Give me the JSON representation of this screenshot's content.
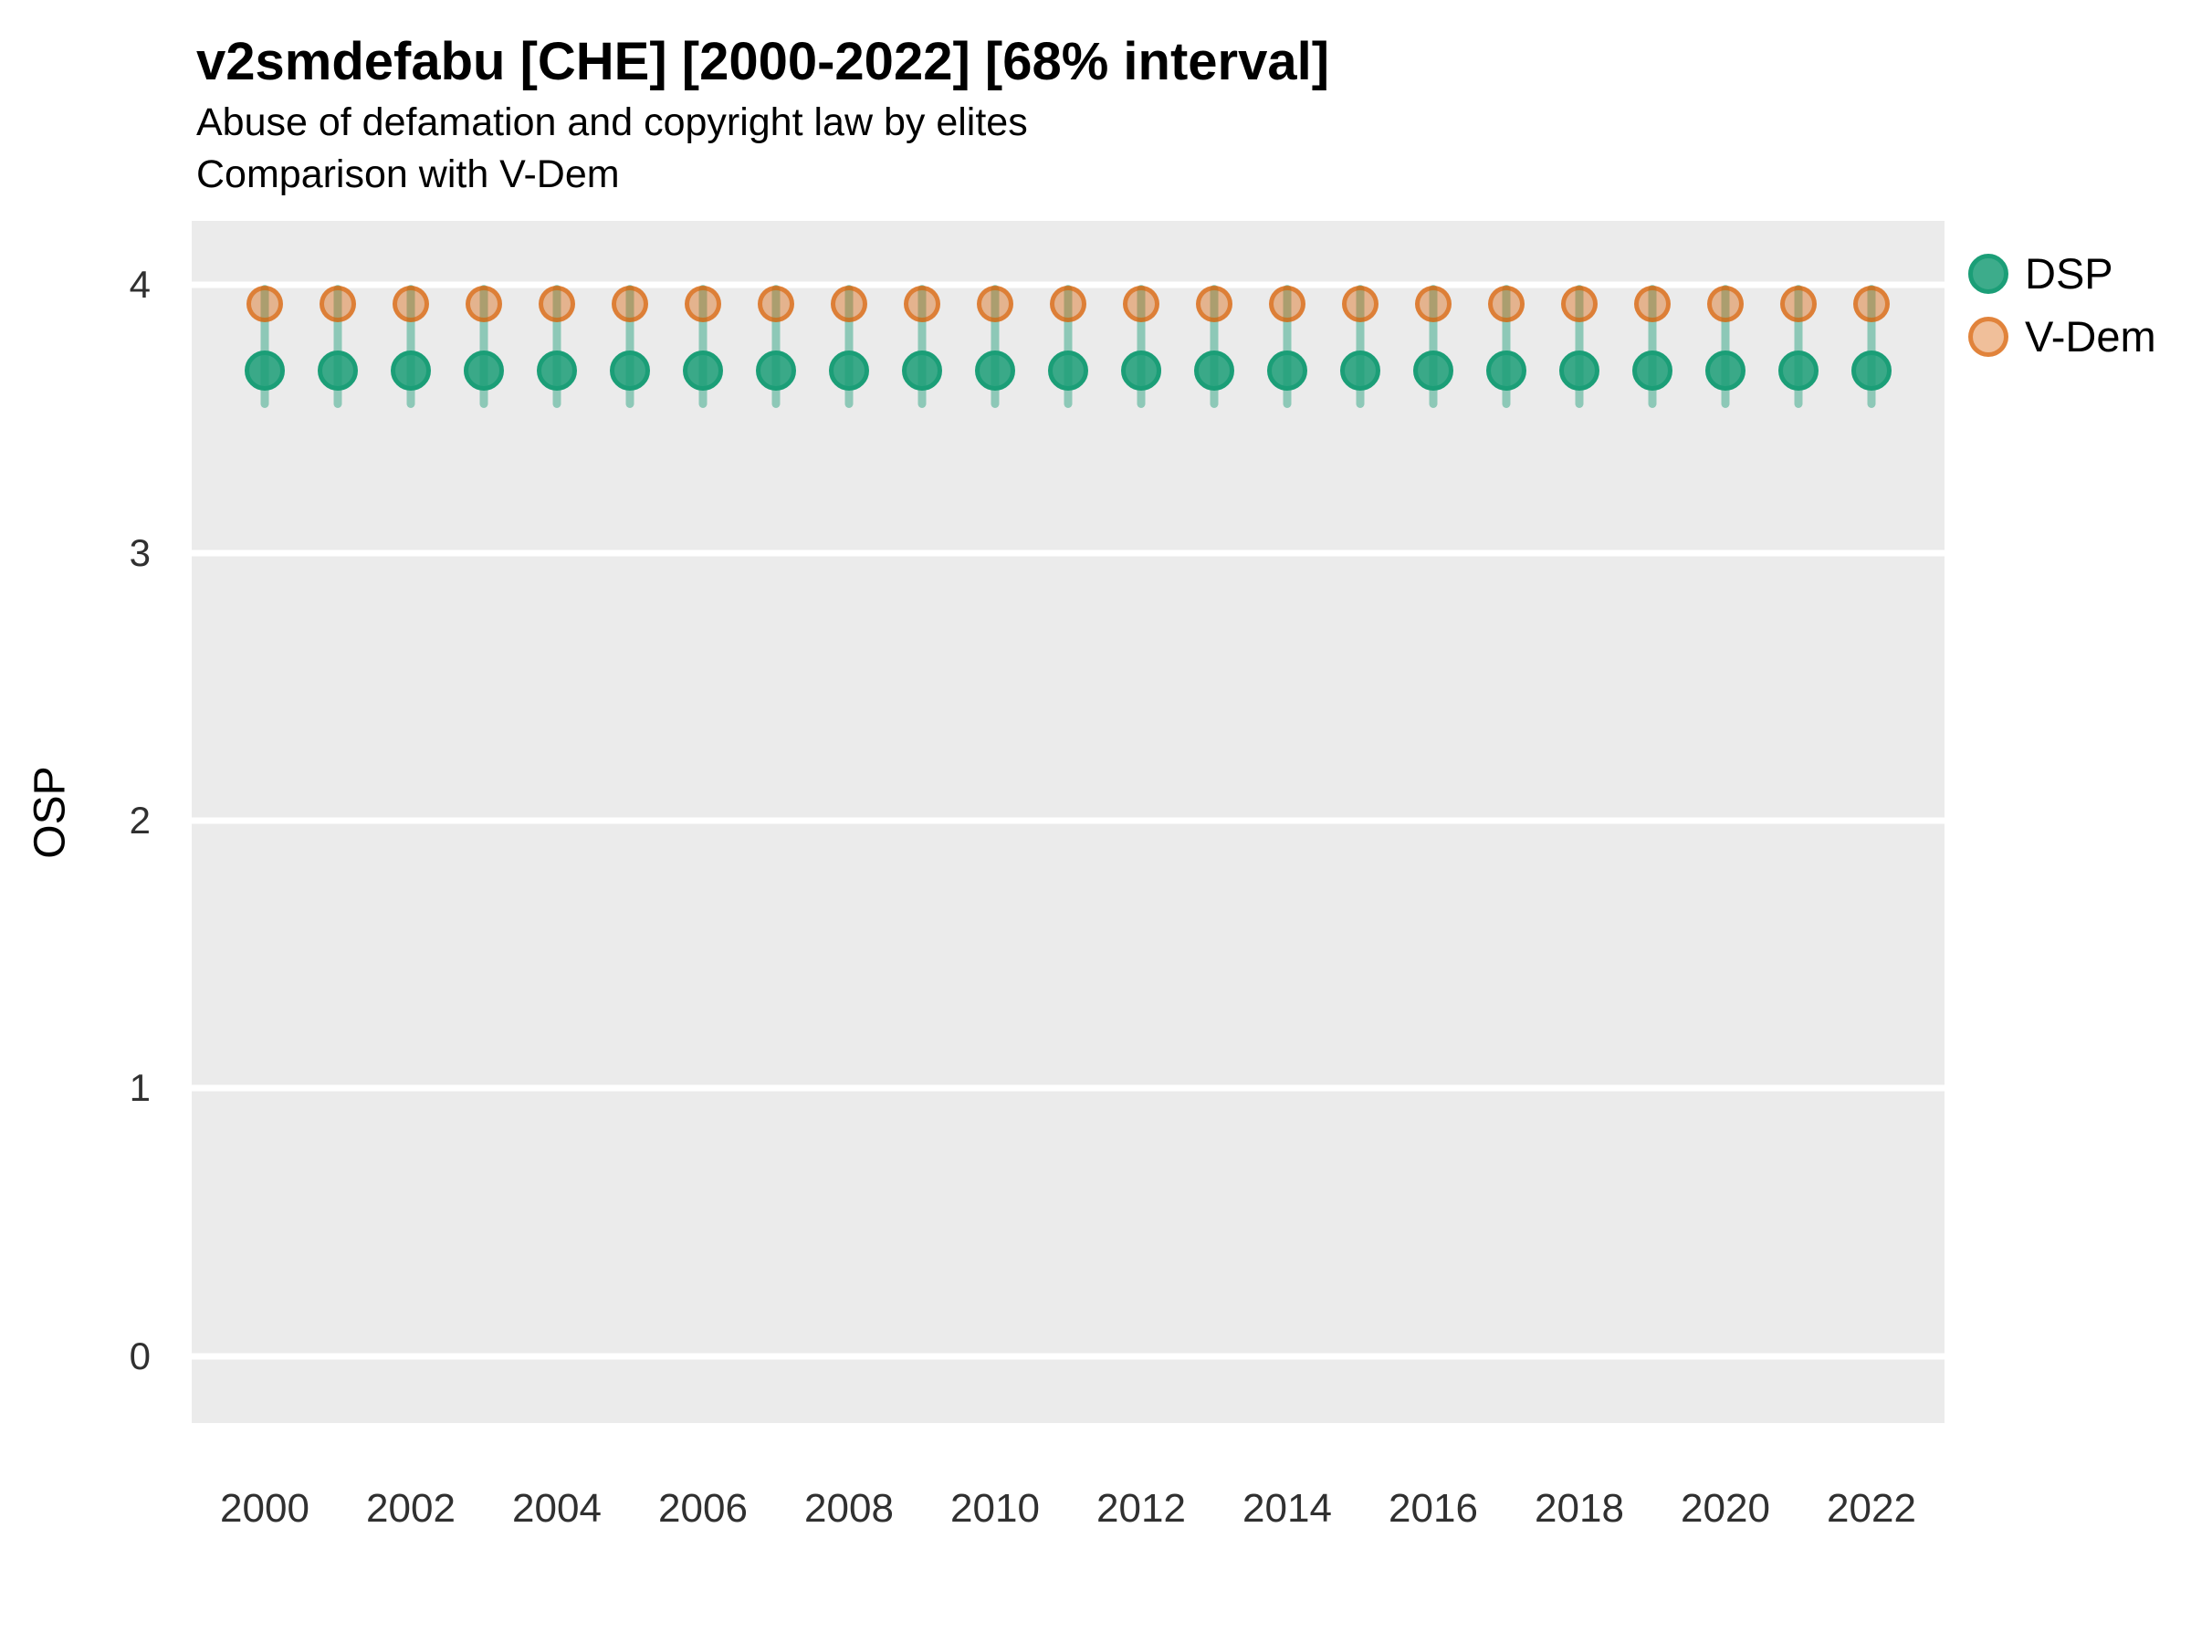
{
  "header": {
    "title": "v2smdefabu [CHE] [2000-2022] [68% interval]",
    "subtitle_line1": "Abuse of defamation and copyright law by elites",
    "subtitle_line2": "Comparison with V-Dem"
  },
  "y_axis_title": "OSP",
  "legend": {
    "position": "right",
    "entries": [
      {
        "label": "DSP",
        "color": "#1B9E77"
      },
      {
        "label": "V-Dem",
        "color": "#D95F02"
      }
    ]
  },
  "colors": {
    "dsp_base": "#1B9E77",
    "vdem_base": "#D95F02",
    "dsp_point_fill": "rgba(27,158,119,0.85)",
    "dsp_point_stroke": "#1B9E77",
    "vdem_point_fill": "rgba(217,95,2,0.40)",
    "vdem_point_stroke": "rgba(217,95,2,0.62)",
    "interval_line": "rgba(27,158,119,0.45)",
    "panel_background": "#EBEBEB",
    "gridline": "#FFFFFF",
    "tick_text": "#303030"
  },
  "chart_data": {
    "type": "scatter",
    "subtype": "pointrange",
    "title": "v2smdefabu [CHE] [2000-2022] [68% interval]",
    "subtitle": [
      "Abuse of defamation and copyright law by elites",
      "Comparison with V-Dem"
    ],
    "xlabel": "",
    "ylabel": "OSP",
    "x": [
      2000,
      2001,
      2002,
      2003,
      2004,
      2005,
      2006,
      2007,
      2008,
      2009,
      2010,
      2011,
      2012,
      2013,
      2014,
      2015,
      2016,
      2017,
      2018,
      2019,
      2020,
      2021,
      2022
    ],
    "series": [
      {
        "name": "DSP",
        "values": [
          3.68,
          3.68,
          3.68,
          3.68,
          3.68,
          3.68,
          3.68,
          3.68,
          3.68,
          3.68,
          3.68,
          3.68,
          3.68,
          3.68,
          3.68,
          3.68,
          3.68,
          3.68,
          3.68,
          3.68,
          3.68,
          3.68,
          3.68
        ],
        "lower": [
          3.54,
          3.54,
          3.54,
          3.54,
          3.54,
          3.54,
          3.54,
          3.54,
          3.54,
          3.54,
          3.54,
          3.54,
          3.54,
          3.54,
          3.54,
          3.54,
          3.54,
          3.54,
          3.54,
          3.54,
          3.54,
          3.54,
          3.54
        ],
        "upper": [
          4.0,
          4.0,
          4.0,
          4.0,
          4.0,
          4.0,
          4.0,
          4.0,
          4.0,
          4.0,
          4.0,
          4.0,
          4.0,
          4.0,
          4.0,
          4.0,
          4.0,
          4.0,
          4.0,
          4.0,
          4.0,
          4.0,
          4.0
        ],
        "interval": "68%",
        "color": "#1B9E77"
      },
      {
        "name": "V-Dem",
        "values": [
          3.93,
          3.93,
          3.93,
          3.93,
          3.93,
          3.93,
          3.93,
          3.93,
          3.93,
          3.93,
          3.93,
          3.93,
          3.93,
          3.93,
          3.93,
          3.93,
          3.93,
          3.93,
          3.93,
          3.93,
          3.93,
          3.93,
          3.93
        ],
        "color": "#D95F02"
      }
    ],
    "ylim": [
      0,
      4
    ],
    "y_ticks": [
      0,
      1,
      2,
      3,
      4
    ],
    "x_ticks": [
      2000,
      2002,
      2004,
      2006,
      2008,
      2010,
      2012,
      2014,
      2016,
      2018,
      2020,
      2022
    ],
    "panel_y_domain": [
      -0.25,
      4.24
    ],
    "panel_x_domain": [
      1999,
      2023
    ],
    "grid": "major-horizontal only, white on gray panel",
    "legend_position": "right"
  }
}
